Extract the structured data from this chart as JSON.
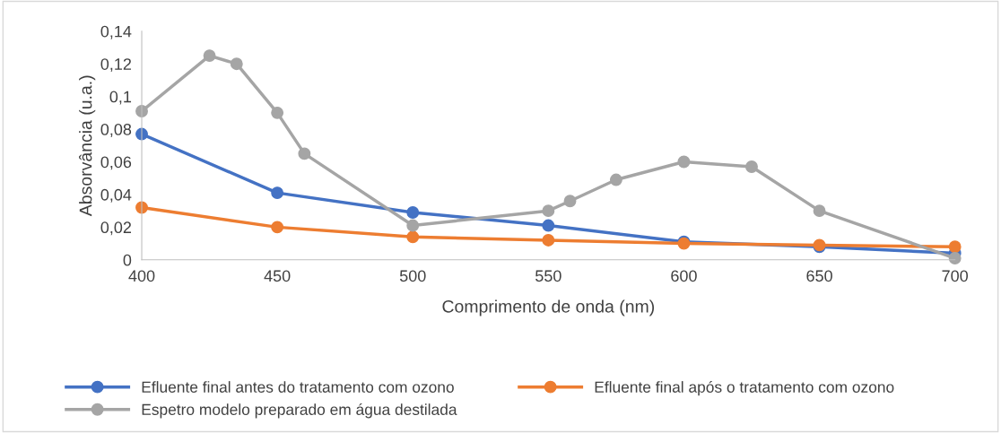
{
  "chart_data": {
    "type": "line",
    "xlabel": "Comprimento de onda (nm)",
    "ylabel": "Absorvância (u.a.)",
    "xlim": [
      400,
      700
    ],
    "xticks": [
      400,
      450,
      500,
      550,
      600,
      650,
      700
    ],
    "ylim": [
      0,
      0.14
    ],
    "yticks": [
      0,
      {
        "value": 0.02,
        "label": "0,02"
      },
      {
        "value": 0.04,
        "label": "0,04"
      },
      {
        "value": 0.06,
        "label": "0,06"
      },
      {
        "value": 0.08,
        "label": "0,08"
      },
      {
        "value": 0.1,
        "label": "0,1"
      },
      {
        "value": 0.12,
        "label": "0,12"
      },
      {
        "value": 0.14,
        "label": "0,14"
      }
    ],
    "grid": false,
    "legend": "bottom",
    "marker": "circle",
    "line_style": "solid",
    "series": [
      {
        "name": "Efluente final antes do tratamento com ozono",
        "color": "#4472c4",
        "x": [
          400,
          450,
          500,
          550,
          600,
          650,
          700
        ],
        "values": [
          0.077,
          0.041,
          0.029,
          0.021,
          0.011,
          0.008,
          0.004
        ]
      },
      {
        "name": "Efluente final após o tratamento com ozono",
        "color": "#ed7d31",
        "x": [
          400,
          450,
          500,
          550,
          600,
          650,
          700
        ],
        "values": [
          0.032,
          0.02,
          0.014,
          0.012,
          0.01,
          0.009,
          0.008
        ]
      },
      {
        "name": "Espetro modelo preparado em água destilada",
        "color": "#a5a5a5",
        "x": [
          400,
          425,
          435,
          450,
          460,
          500,
          550,
          558,
          575,
          600,
          625,
          650,
          700
        ],
        "values": [
          0.091,
          0.125,
          0.12,
          0.09,
          0.065,
          0.021,
          0.03,
          0.036,
          0.049,
          0.06,
          0.057,
          0.03,
          0.001
        ]
      }
    ]
  }
}
